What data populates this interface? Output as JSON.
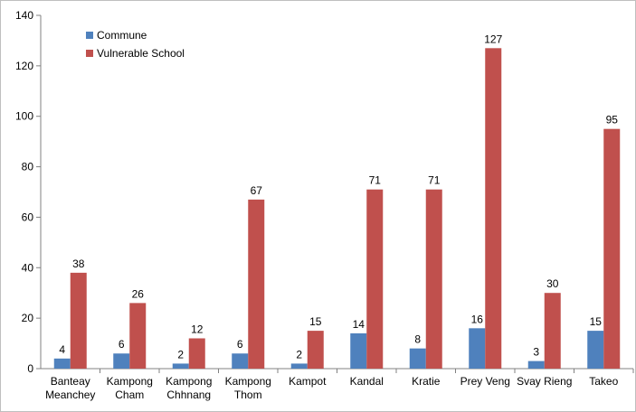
{
  "chart_data": {
    "type": "bar",
    "categories": [
      [
        "Banteay",
        "Meanchey"
      ],
      [
        "Kampong",
        "Cham"
      ],
      [
        "Kampong",
        "Chhnang"
      ],
      [
        "Kampong",
        "Thom"
      ],
      [
        "Kampot"
      ],
      [
        "Kandal"
      ],
      [
        "Kratie"
      ],
      [
        "Prey Veng"
      ],
      [
        "Svay Rieng"
      ],
      [
        "Takeo"
      ]
    ],
    "series": [
      {
        "name": "Commune",
        "color": "#4F81BD",
        "values": [
          4,
          6,
          2,
          6,
          2,
          14,
          8,
          16,
          3,
          15
        ]
      },
      {
        "name": "Vulnerable School",
        "color": "#C0504D",
        "values": [
          38,
          26,
          12,
          67,
          15,
          71,
          71,
          127,
          30,
          95
        ]
      }
    ],
    "ylim": [
      0,
      140
    ],
    "yticks": [
      0,
      20,
      40,
      60,
      80,
      100,
      120,
      140
    ],
    "grid": false,
    "legend": "top-left"
  }
}
